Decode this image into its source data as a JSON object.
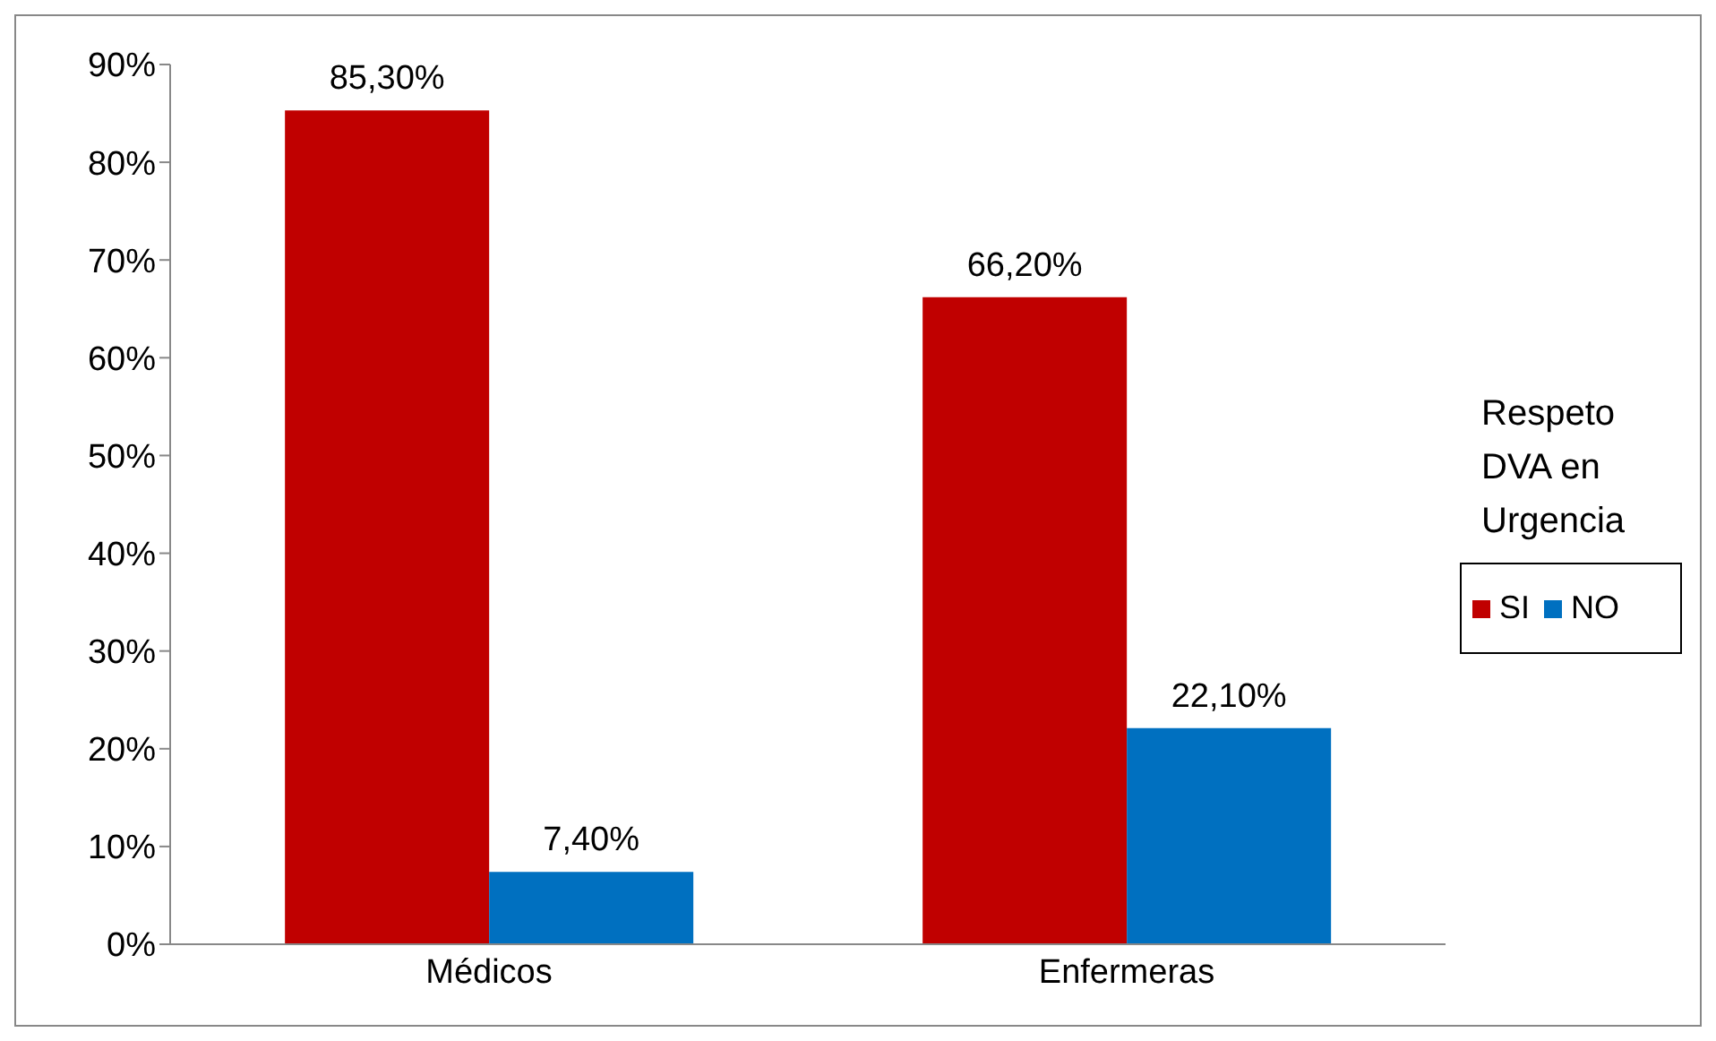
{
  "chart_data": {
    "type": "bar",
    "categories": [
      "Médicos",
      "Enfermeras"
    ],
    "series": [
      {
        "name": "SI",
        "color": "#c00000",
        "values": [
          85.3,
          66.2
        ],
        "value_labels": [
          "85,30%",
          "66,20%"
        ]
      },
      {
        "name": "NO",
        "color": "#0070c0",
        "values": [
          7.4,
          22.1
        ],
        "value_labels": [
          "7,40%",
          "22,10%"
        ]
      }
    ],
    "ylim": [
      0,
      90
    ],
    "yticks": [
      {
        "value": 0,
        "label": "0%"
      },
      {
        "value": 10,
        "label": "10%"
      },
      {
        "value": 20,
        "label": "20%"
      },
      {
        "value": 30,
        "label": "30%"
      },
      {
        "value": 40,
        "label": "40%"
      },
      {
        "value": 50,
        "label": "50%"
      },
      {
        "value": 60,
        "label": "60%"
      },
      {
        "value": 70,
        "label": "70%"
      },
      {
        "value": 80,
        "label": "80%"
      },
      {
        "value": 90,
        "label": "90%"
      }
    ],
    "legend": "right",
    "legend_title": "Respeto DVA en Urgencia",
    "grid": false
  }
}
